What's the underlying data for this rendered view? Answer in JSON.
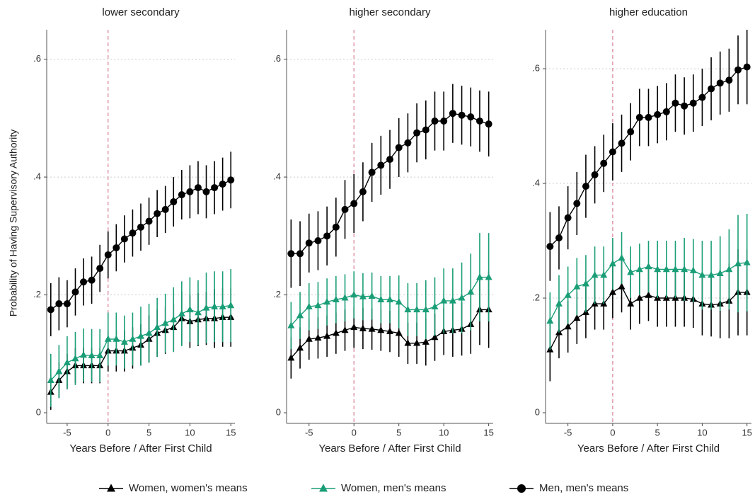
{
  "chart_data": {
    "type": "line",
    "ylabel": "Probability of Having Supervisory Authority",
    "x": [
      -7,
      -6,
      -5,
      -4,
      -3,
      -2,
      -1,
      0,
      1,
      2,
      3,
      4,
      5,
      6,
      7,
      8,
      9,
      10,
      11,
      12,
      13,
      14,
      15
    ],
    "xticks": [
      -5,
      0,
      5,
      10,
      15
    ],
    "vline": 0,
    "grid": true,
    "series": [
      {
        "name": "Women, women's means",
        "color": "#000000",
        "marker": "triangle"
      },
      {
        "name": "Women, men's means",
        "color": "#1a9e77",
        "marker": "triangle"
      },
      {
        "name": "Men, men's means",
        "color": "#000000",
        "marker": "circle"
      }
    ],
    "panels": [
      {
        "title": "lower secondary",
        "xlabel": "Years Before / After First Child",
        "xlim": [
          -7.5,
          15.5
        ],
        "ylim": [
          -0.018,
          0.65
        ],
        "yticks": [
          0,
          {
            "value": 0.2,
            "label": ".2"
          },
          {
            "value": 0.4,
            "label": ".4"
          },
          {
            "value": 0.6,
            "label": ".6"
          }
        ],
        "series": [
          {
            "values": [
              0.035,
              0.055,
              0.07,
              0.08,
              0.08,
              0.08,
              0.08,
              0.105,
              0.105,
              0.105,
              0.11,
              0.115,
              0.125,
              0.135,
              0.14,
              0.145,
              0.16,
              0.155,
              0.158,
              0.16,
              0.16,
              0.162,
              0.162
            ],
            "errors": [
              0.03,
              0.03,
              0.03,
              0.03,
              0.03,
              0.03,
              0.03,
              0.035,
              0.035,
              0.035,
              0.035,
              0.035,
              0.04,
              0.04,
              0.04,
              0.04,
              0.045,
              0.045,
              0.045,
              0.045,
              0.05,
              0.05,
              0.05
            ]
          },
          {
            "values": [
              0.055,
              0.07,
              0.085,
              0.092,
              0.098,
              0.097,
              0.097,
              0.125,
              0.125,
              0.12,
              0.125,
              0.13,
              0.135,
              0.145,
              0.152,
              0.158,
              0.168,
              0.175,
              0.17,
              0.178,
              0.18,
              0.18,
              0.182
            ],
            "errors": [
              0.045,
              0.045,
              0.045,
              0.045,
              0.045,
              0.045,
              0.045,
              0.045,
              0.045,
              0.045,
              0.045,
              0.05,
              0.05,
              0.05,
              0.05,
              0.055,
              0.055,
              0.055,
              0.055,
              0.06,
              0.06,
              0.06,
              0.062
            ]
          },
          {
            "values": [
              0.175,
              0.185,
              0.185,
              0.205,
              0.222,
              0.225,
              0.245,
              0.268,
              0.28,
              0.295,
              0.305,
              0.315,
              0.325,
              0.338,
              0.345,
              0.358,
              0.37,
              0.375,
              0.382,
              0.375,
              0.382,
              0.388,
              0.395
            ],
            "errors": [
              0.045,
              0.045,
              0.04,
              0.04,
              0.04,
              0.04,
              0.04,
              0.04,
              0.04,
              0.04,
              0.04,
              0.04,
              0.04,
              0.04,
              0.04,
              0.042,
              0.042,
              0.045,
              0.045,
              0.045,
              0.045,
              0.045,
              0.048
            ]
          }
        ]
      },
      {
        "title": "higher secondary",
        "xlabel": "Years Before / After First Child",
        "xlim": [
          -7.5,
          15.5
        ],
        "ylim": [
          -0.018,
          0.65
        ],
        "yticks": [
          0,
          {
            "value": 0.2,
            "label": ".2"
          },
          {
            "value": 0.4,
            "label": ".4"
          },
          {
            "value": 0.6,
            "label": ".6"
          }
        ],
        "series": [
          {
            "values": [
              0.093,
              0.11,
              0.125,
              0.127,
              0.13,
              0.135,
              0.14,
              0.145,
              0.143,
              0.142,
              0.14,
              0.138,
              0.135,
              0.118,
              0.118,
              0.12,
              0.128,
              0.138,
              0.14,
              0.142,
              0.15,
              0.175,
              0.175
            ],
            "errors": [
              0.035,
              0.035,
              0.035,
              0.035,
              0.035,
              0.035,
              0.035,
              0.035,
              0.035,
              0.035,
              0.035,
              0.035,
              0.04,
              0.035,
              0.035,
              0.04,
              0.04,
              0.04,
              0.045,
              0.045,
              0.05,
              0.06,
              0.065
            ]
          },
          {
            "values": [
              0.148,
              0.165,
              0.18,
              0.182,
              0.188,
              0.192,
              0.195,
              0.2,
              0.197,
              0.198,
              0.192,
              0.192,
              0.188,
              0.175,
              0.175,
              0.175,
              0.18,
              0.19,
              0.19,
              0.195,
              0.205,
              0.23,
              0.23
            ],
            "errors": [
              0.04,
              0.04,
              0.04,
              0.04,
              0.04,
              0.04,
              0.04,
              0.04,
              0.04,
              0.04,
              0.04,
              0.04,
              0.045,
              0.045,
              0.045,
              0.05,
              0.05,
              0.055,
              0.055,
              0.06,
              0.065,
              0.075,
              0.075
            ]
          },
          {
            "values": [
              0.27,
              0.27,
              0.288,
              0.292,
              0.3,
              0.315,
              0.345,
              0.355,
              0.375,
              0.408,
              0.42,
              0.43,
              0.45,
              0.458,
              0.475,
              0.48,
              0.495,
              0.495,
              0.508,
              0.505,
              0.502,
              0.495,
              0.49
            ],
            "errors": [
              0.058,
              0.055,
              0.05,
              0.05,
              0.05,
              0.05,
              0.05,
              0.05,
              0.05,
              0.05,
              0.05,
              0.05,
              0.05,
              0.05,
              0.05,
              0.05,
              0.05,
              0.05,
              0.05,
              0.05,
              0.05,
              0.052,
              0.055
            ]
          }
        ]
      },
      {
        "title": "higher education",
        "xlabel": "Years Before / After First Child",
        "xlim": [
          -7.5,
          15.5
        ],
        "ylim": [
          -0.0185,
          0.668
        ],
        "yticks": [
          0,
          {
            "value": 0.2,
            "label": ".2"
          },
          {
            "value": 0.4,
            "label": ".4"
          },
          {
            "value": 0.6,
            "label": ".6"
          }
        ],
        "series": [
          {
            "values": [
              0.11,
              0.14,
              0.15,
              0.165,
              0.175,
              0.19,
              0.19,
              0.21,
              0.22,
              0.19,
              0.2,
              0.205,
              0.2,
              0.2,
              0.2,
              0.2,
              0.198,
              0.19,
              0.188,
              0.19,
              0.195,
              0.21,
              0.21
            ],
            "errors": [
              0.055,
              0.045,
              0.045,
              0.045,
              0.045,
              0.045,
              0.045,
              0.045,
              0.045,
              0.045,
              0.045,
              0.045,
              0.05,
              0.05,
              0.05,
              0.05,
              0.05,
              0.055,
              0.055,
              0.06,
              0.065,
              0.075,
              0.075
            ]
          },
          {
            "values": [
              0.16,
              0.19,
              0.205,
              0.22,
              0.225,
              0.24,
              0.24,
              0.26,
              0.27,
              0.245,
              0.25,
              0.255,
              0.25,
              0.25,
              0.25,
              0.25,
              0.248,
              0.24,
              0.24,
              0.243,
              0.25,
              0.26,
              0.262
            ],
            "errors": [
              0.05,
              0.05,
              0.05,
              0.05,
              0.05,
              0.05,
              0.05,
              0.045,
              0.045,
              0.045,
              0.045,
              0.045,
              0.05,
              0.05,
              0.05,
              0.055,
              0.055,
              0.06,
              0.06,
              0.065,
              0.07,
              0.085,
              0.085
            ]
          },
          {
            "values": [
              0.29,
              0.305,
              0.34,
              0.365,
              0.395,
              0.415,
              0.435,
              0.455,
              0.47,
              0.49,
              0.515,
              0.515,
              0.52,
              0.525,
              0.54,
              0.535,
              0.54,
              0.55,
              0.565,
              0.575,
              0.58,
              0.598,
              0.603
            ],
            "errors": [
              0.06,
              0.055,
              0.055,
              0.055,
              0.055,
              0.05,
              0.05,
              0.05,
              0.05,
              0.05,
              0.05,
              0.05,
              0.05,
              0.05,
              0.05,
              0.05,
              0.05,
              0.05,
              0.055,
              0.055,
              0.055,
              0.06,
              0.065
            ]
          }
        ]
      }
    ]
  }
}
